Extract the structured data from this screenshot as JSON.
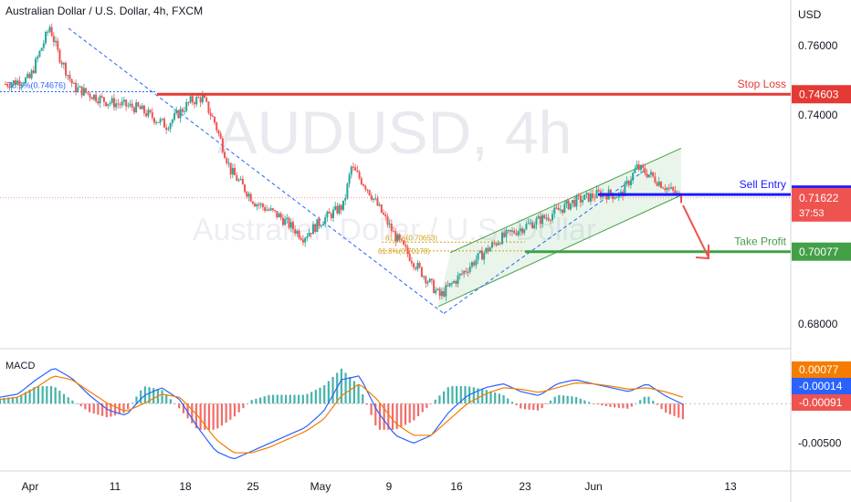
{
  "chart_data": {
    "type": "candlestick",
    "title": "Australian Dollar / U.S. Dollar, 4h, FXCM",
    "currency": "USD",
    "watermark": {
      "symbol": "AUDUSD, 4h",
      "name": "Australian Dollar / U.S. Dollar"
    },
    "price_axis": {
      "ticks": [
        "0.76000",
        "0.74000",
        "0.68000"
      ],
      "ylim": [
        0.6755,
        0.7705
      ]
    },
    "time_axis": {
      "ticks": [
        "Apr",
        "11",
        "18",
        "25",
        "May",
        "9",
        "16",
        "23",
        "Jun",
        "13"
      ]
    },
    "price_series": {
      "approximate": true,
      "start": 0.749,
      "anchors": [
        {
          "i": 0,
          "p": 0.749
        },
        {
          "i": 12,
          "p": 0.7505
        },
        {
          "i": 22,
          "p": 0.7655
        },
        {
          "i": 26,
          "p": 0.758
        },
        {
          "i": 34,
          "p": 0.748
        },
        {
          "i": 50,
          "p": 0.744
        },
        {
          "i": 66,
          "p": 0.742
        },
        {
          "i": 80,
          "p": 0.737
        },
        {
          "i": 92,
          "p": 0.744
        },
        {
          "i": 98,
          "p": 0.745
        },
        {
          "i": 104,
          "p": 0.738
        },
        {
          "i": 112,
          "p": 0.724
        },
        {
          "i": 124,
          "p": 0.715
        },
        {
          "i": 136,
          "p": 0.711
        },
        {
          "i": 148,
          "p": 0.705
        },
        {
          "i": 158,
          "p": 0.71
        },
        {
          "i": 168,
          "p": 0.714
        },
        {
          "i": 172,
          "p": 0.725
        },
        {
          "i": 180,
          "p": 0.719
        },
        {
          "i": 194,
          "p": 0.705
        },
        {
          "i": 204,
          "p": 0.697
        },
        {
          "i": 216,
          "p": 0.688
        },
        {
          "i": 222,
          "p": 0.6915
        },
        {
          "i": 234,
          "p": 0.6985
        },
        {
          "i": 246,
          "p": 0.7045
        },
        {
          "i": 258,
          "p": 0.708
        },
        {
          "i": 270,
          "p": 0.711
        },
        {
          "i": 282,
          "p": 0.715
        },
        {
          "i": 296,
          "p": 0.7175
        },
        {
          "i": 306,
          "p": 0.717
        },
        {
          "i": 314,
          "p": 0.725
        },
        {
          "i": 320,
          "p": 0.723
        },
        {
          "i": 328,
          "p": 0.7195
        },
        {
          "i": 336,
          "p": 0.7162
        }
      ],
      "last": 0.71622
    },
    "levels": [
      {
        "name": "Stop Loss",
        "price": 0.74603,
        "label": "0.74603",
        "color": "#e53935"
      },
      {
        "name": "Sell Entry",
        "price": 0.71718,
        "label": "0.71718",
        "color": "#1a1aff"
      },
      {
        "name": "Take Profit",
        "price": 0.70077,
        "label": "0.70077",
        "color": "#43a047"
      }
    ],
    "current_price": {
      "label": "0.71622",
      "countdown": "37:53",
      "color": "#ef5350"
    },
    "fib_labels": {
      "top_left": "78.6%(0.74676)",
      "bottom_1": "61.8%(0.70653)",
      "bottom_2": "61.8%(0.70178)"
    },
    "trend_channel": {
      "low": [
        16,
        0.685
      ],
      "high": [
        [
          24,
          0.7015
        ],
        [
          33.2,
          0.7285
        ]
      ]
    },
    "projection_arrow": "down",
    "macd": {
      "label": "MACD",
      "axis_ticks": [
        "-0.00500"
      ],
      "values_labels": [
        {
          "label": "0.00077",
          "color": "#f57c00"
        },
        {
          "label": "-0.00014",
          "color": "#2962ff"
        },
        {
          "label": "-0.00091",
          "color": "#ef5350"
        }
      ],
      "approximate": true,
      "macd_line": [
        0.0008,
        0.0012,
        0.003,
        0.0045,
        0.0032,
        0.001,
        -0.0008,
        -0.0015,
        0.001,
        0.002,
        0.0005,
        -0.003,
        -0.006,
        -0.007,
        -0.006,
        -0.005,
        -0.004,
        -0.003,
        -0.001,
        0.003,
        0.0035,
        -0.001,
        -0.004,
        -0.005,
        -0.004,
        -0.001,
        0.001,
        0.002,
        0.0025,
        0.0015,
        0.001,
        0.0025,
        0.003,
        0.0025,
        0.002,
        0.0015,
        0.0025,
        0.001,
        -0.0001
      ],
      "signal_line": [
        0.0005,
        0.0008,
        0.002,
        0.0035,
        0.003,
        0.0015,
        0.0,
        -0.001,
        0.0,
        0.0012,
        0.0008,
        -0.0015,
        -0.0045,
        -0.0062,
        -0.0062,
        -0.0055,
        -0.0045,
        -0.0035,
        -0.002,
        0.001,
        0.0025,
        0.0005,
        -0.0025,
        -0.004,
        -0.004,
        -0.002,
        0.0,
        0.0012,
        0.002,
        0.0018,
        0.0014,
        0.002,
        0.0026,
        0.0025,
        0.0022,
        0.0018,
        0.002,
        0.0015,
        0.0008
      ],
      "ylim": [
        -0.0078,
        0.006
      ]
    }
  }
}
